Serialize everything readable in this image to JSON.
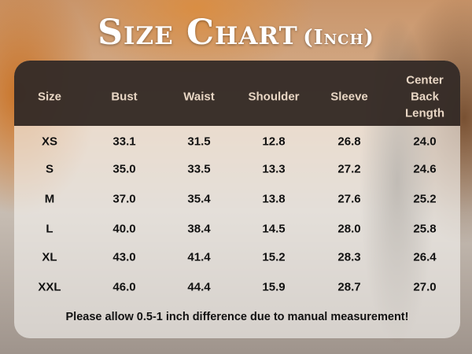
{
  "title": {
    "main": "Size Chart",
    "unit": "(Inch)"
  },
  "table": {
    "headers": [
      "Size",
      "Bust",
      "Waist",
      "Shoulder",
      "Sleeve",
      "Center Back Length"
    ],
    "rows": [
      [
        "XS",
        "33.1",
        "31.5",
        "12.8",
        "26.8",
        "24.0"
      ],
      [
        "S",
        "35.0",
        "33.5",
        "13.3",
        "27.2",
        "24.6"
      ],
      [
        "M",
        "37.0",
        "35.4",
        "13.8",
        "27.6",
        "25.2"
      ],
      [
        "L",
        "40.0",
        "38.4",
        "14.5",
        "28.0",
        "25.8"
      ],
      [
        "XL",
        "43.0",
        "41.4",
        "15.2",
        "28.3",
        "26.4"
      ],
      [
        "XXL",
        "46.0",
        "44.4",
        "15.9",
        "28.7",
        "27.0"
      ]
    ]
  },
  "note": "Please allow 0.5-1 inch difference due to manual measurement!",
  "colors": {
    "header_bg": "#281e19",
    "header_text": "#e8d6c4",
    "body_text": "#111111"
  }
}
